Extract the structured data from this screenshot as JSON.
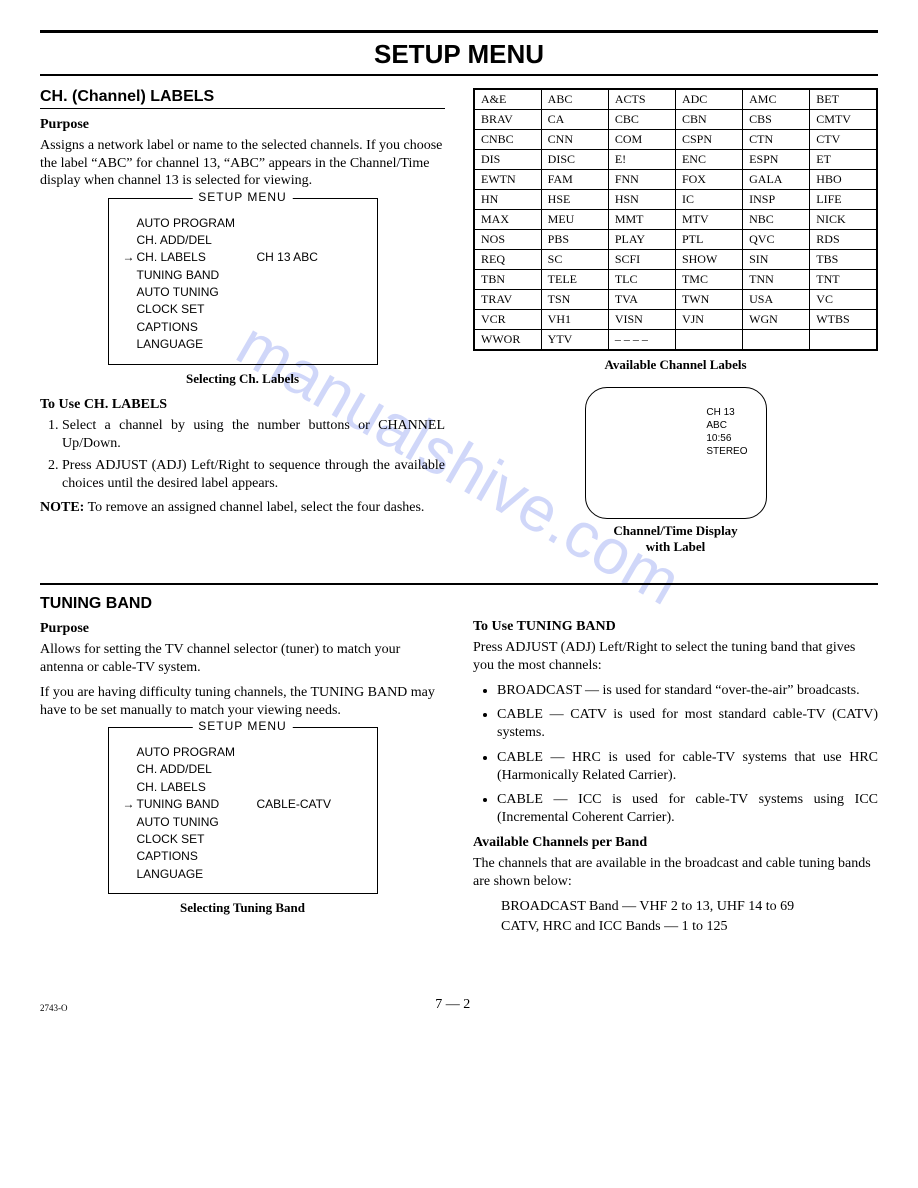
{
  "watermark_text": "manualshive.com",
  "watermark_color": "#7b8ef0",
  "page_title": "SETUP MENU",
  "section1": {
    "heading": "CH. (Channel) LABELS",
    "purpose_label": "Purpose",
    "purpose_text": "Assigns a network label or name to the selected channels. If you choose the label “ABC” for channel 13, “ABC” appears in the Channel/Time display when channel 13 is selected for viewing.",
    "menu": {
      "legend": "SETUP MENU",
      "items": [
        {
          "label": "AUTO PROGRAM",
          "selected": false,
          "value": ""
        },
        {
          "label": "CH. ADD/DEL",
          "selected": false,
          "value": ""
        },
        {
          "label": "CH. LABELS",
          "selected": true,
          "value": "CH 13 ABC"
        },
        {
          "label": "TUNING BAND",
          "selected": false,
          "value": ""
        },
        {
          "label": "AUTO TUNING",
          "selected": false,
          "value": ""
        },
        {
          "label": "CLOCK SET",
          "selected": false,
          "value": ""
        },
        {
          "label": "CAPTIONS",
          "selected": false,
          "value": ""
        },
        {
          "label": "LANGUAGE",
          "selected": false,
          "value": ""
        }
      ],
      "caption": "Selecting Ch. Labels"
    },
    "use_heading": "To Use CH. LABELS",
    "steps": [
      "Select a channel by using the number buttons or CHANNEL Up/Down.",
      "Press ADJUST (ADJ) Left/Right to sequence through the available choices until the desired label appears."
    ],
    "note_label": "NOTE:",
    "note_text": "To remove an assigned channel label, select the four dashes.",
    "labels_table": {
      "caption": "Available Channel Labels",
      "rows": [
        [
          "A&E",
          "ABC",
          "ACTS",
          "ADC",
          "AMC",
          "BET"
        ],
        [
          "BRAV",
          "CA",
          "CBC",
          "CBN",
          "CBS",
          "CMTV"
        ],
        [
          "CNBC",
          "CNN",
          "COM",
          "CSPN",
          "CTN",
          "CTV"
        ],
        [
          "DIS",
          "DISC",
          "E!",
          "ENC",
          "ESPN",
          "ET"
        ],
        [
          "EWTN",
          "FAM",
          "FNN",
          "FOX",
          "GALA",
          "HBO"
        ],
        [
          "HN",
          "HSE",
          "HSN",
          "IC",
          "INSP",
          "LIFE"
        ],
        [
          "MAX",
          "MEU",
          "MMT",
          "MTV",
          "NBC",
          "NICK"
        ],
        [
          "NOS",
          "PBS",
          "PLAY",
          "PTL",
          "QVC",
          "RDS"
        ],
        [
          "REQ",
          "SC",
          "SCFI",
          "SHOW",
          "SIN",
          "TBS"
        ],
        [
          "TBN",
          "TELE",
          "TLC",
          "TMC",
          "TNN",
          "TNT"
        ],
        [
          "TRAV",
          "TSN",
          "TVA",
          "TWN",
          "USA",
          "VC"
        ],
        [
          "VCR",
          "VH1",
          "VISN",
          "VJN",
          "WGN",
          "WTBS"
        ],
        [
          "WWOR",
          "YTV",
          "– – – –",
          "",
          "",
          ""
        ]
      ]
    },
    "tv": {
      "lines": [
        "CH 13",
        "ABC",
        "10:56",
        "STEREO"
      ],
      "caption_line1": "Channel/Time Display",
      "caption_line2": "with Label"
    }
  },
  "section2": {
    "heading": "TUNING BAND",
    "purpose_label": "Purpose",
    "purpose_p1": "Allows for setting the TV channel selector (tuner) to match your antenna or cable-TV system.",
    "purpose_p2": "If you are having difficulty tuning channels, the TUNING BAND may have to be set manually to match your viewing needs.",
    "menu": {
      "legend": "SETUP MENU",
      "items": [
        {
          "label": "AUTO PROGRAM",
          "selected": false,
          "value": ""
        },
        {
          "label": "CH. ADD/DEL",
          "selected": false,
          "value": ""
        },
        {
          "label": "CH. LABELS",
          "selected": false,
          "value": ""
        },
        {
          "label": "TUNING BAND",
          "selected": true,
          "value": "CABLE-CATV"
        },
        {
          "label": "AUTO TUNING",
          "selected": false,
          "value": ""
        },
        {
          "label": "CLOCK SET",
          "selected": false,
          "value": ""
        },
        {
          "label": "CAPTIONS",
          "selected": false,
          "value": ""
        },
        {
          "label": "LANGUAGE",
          "selected": false,
          "value": ""
        }
      ],
      "caption": "Selecting Tuning Band"
    },
    "use_heading": "To Use TUNING BAND",
    "use_intro": "Press ADJUST (ADJ) Left/Right to select the tuning band that gives you the most channels:",
    "bullets": [
      "BROADCAST — is used for standard “over-the-air” broadcasts.",
      "CABLE — CATV is used for most standard cable-TV (CATV) systems.",
      "CABLE — HRC is used for cable-TV systems that use HRC (Harmonically Related Carrier).",
      "CABLE — ICC is used for cable-TV systems using ICC (Incremental Coherent Carrier)."
    ],
    "avail_heading": "Available Channels per Band",
    "avail_text": "The channels that are available in the broadcast and cable tuning bands are shown below:",
    "avail_lines": [
      "BROADCAST Band — VHF 2 to 13, UHF 14 to 69",
      "CATV, HRC and ICC Bands — 1 to 125"
    ]
  },
  "footer": {
    "doc_id": "2743-O",
    "page_number": "7 — 2"
  }
}
